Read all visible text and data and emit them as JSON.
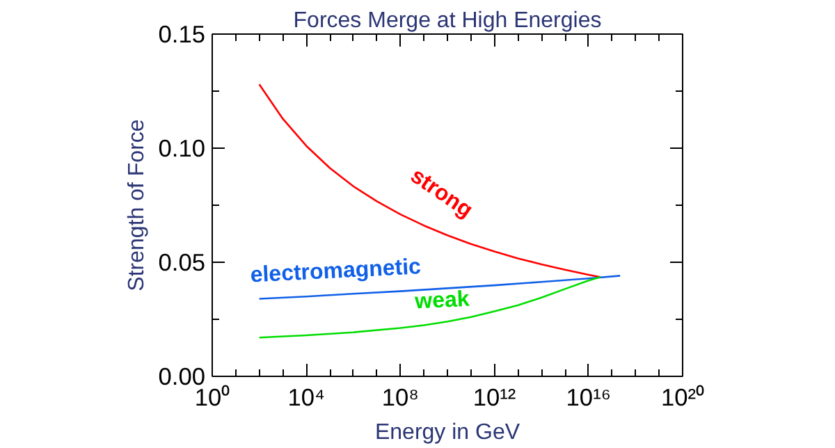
{
  "chart_data": {
    "type": "line",
    "title": "Forces Merge at High Energies",
    "xlabel": "Energy in GeV",
    "ylabel": "Strength of Force",
    "log": "x",
    "xlim": [
      1,
      1e+20
    ],
    "xticks": [
      {
        "value": 1,
        "label": "10⁰"
      },
      {
        "value": 10000.0,
        "label": "10⁴"
      },
      {
        "value": 100000000.0,
        "label": "10⁸"
      },
      {
        "value": 1000000000000.0,
        "label": "10¹²"
      },
      {
        "value": 1e+16,
        "label": "10¹⁶"
      },
      {
        "value": 1e+20,
        "label": "10²⁰"
      }
    ],
    "ylim": [
      0,
      0.15
    ],
    "yticks": [
      {
        "value": 0,
        "label": "0.00"
      },
      {
        "value": 0.05,
        "label": "0.05"
      },
      {
        "value": 0.1,
        "label": "0.10"
      },
      {
        "value": 0.15,
        "label": "0.15"
      }
    ],
    "grid": false,
    "legend": false,
    "marker": "none",
    "line_style": "solid",
    "series": [
      {
        "name": "strong",
        "color": "#ff0000",
        "x": [
          100.0,
          1000.0,
          10000.0,
          100000.0,
          1000000.0,
          10000000.0,
          100000000.0,
          1000000000.0,
          10000000000.0,
          100000000000.0,
          1000000000000.0,
          10000000000000.0,
          100000000000000.0,
          1000000000000000.0,
          1e+16,
          3.16e+16
        ],
        "values": [
          0.128,
          0.1129,
          0.101,
          0.0913,
          0.0833,
          0.0767,
          0.071,
          0.0661,
          0.0618,
          0.058,
          0.0547,
          0.0517,
          0.0491,
          0.0467,
          0.0445,
          0.0435
        ]
      },
      {
        "name": "electromagnetic",
        "color": "#1060e8",
        "x": [
          100.0,
          10000.0,
          1000000.0,
          100000000.0,
          10000000000.0,
          1000000000000.0,
          100000000000000.0,
          1e+16,
          2.2e+17
        ],
        "values": [
          0.034,
          0.035,
          0.0362,
          0.0373,
          0.0386,
          0.0399,
          0.0414,
          0.0429,
          0.0441
        ]
      },
      {
        "name": "weak",
        "color": "#00dd00",
        "x": [
          100.0,
          10000.0,
          1000000.0,
          100000000.0,
          1000000000.0,
          10000000000.0,
          100000000000.0,
          1000000000000.0,
          10000000000000.0,
          100000000000000.0,
          1000000000000000.0,
          1e+16,
          3.16e+16
        ],
        "values": [
          0.017,
          0.018,
          0.0193,
          0.0212,
          0.0224,
          0.024,
          0.026,
          0.0285,
          0.0312,
          0.0345,
          0.0383,
          0.042,
          0.0435
        ]
      }
    ]
  }
}
